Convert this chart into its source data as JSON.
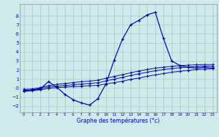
{
  "xlabel": "Graphe des températures (°c)",
  "background_color": "#ceeaea",
  "grid_color": "#a0c8c8",
  "line_color": "#0000bb",
  "xlim": [
    -0.5,
    23.5
  ],
  "ylim": [
    -2.7,
    9.3
  ],
  "yticks": [
    -2,
    -1,
    0,
    1,
    2,
    3,
    4,
    5,
    6,
    7,
    8
  ],
  "xticks": [
    0,
    1,
    2,
    3,
    4,
    5,
    6,
    7,
    8,
    9,
    10,
    11,
    12,
    13,
    14,
    15,
    16,
    17,
    18,
    19,
    20,
    21,
    22,
    23
  ],
  "series_flat1_x": [
    0,
    1,
    2,
    3,
    4,
    5,
    6,
    7,
    8,
    9,
    10,
    11,
    12,
    13,
    14,
    15,
    16,
    17,
    18,
    19,
    20,
    21,
    22,
    23
  ],
  "series_flat1_y": [
    -0.35,
    -0.3,
    -0.2,
    -0.05,
    0.05,
    0.1,
    0.15,
    0.2,
    0.25,
    0.3,
    0.45,
    0.6,
    0.75,
    0.95,
    1.1,
    1.3,
    1.45,
    1.6,
    1.75,
    1.85,
    1.95,
    2.05,
    2.1,
    2.15
  ],
  "series_flat2_x": [
    0,
    1,
    2,
    3,
    4,
    5,
    6,
    7,
    8,
    9,
    10,
    11,
    12,
    13,
    14,
    15,
    16,
    17,
    18,
    19,
    20,
    21,
    22,
    23
  ],
  "series_flat2_y": [
    -0.25,
    -0.2,
    -0.05,
    0.1,
    0.2,
    0.28,
    0.36,
    0.44,
    0.5,
    0.58,
    0.78,
    0.98,
    1.18,
    1.38,
    1.58,
    1.75,
    1.9,
    2.05,
    2.15,
    2.25,
    2.32,
    2.38,
    2.42,
    2.42
  ],
  "series_flat3_x": [
    0,
    1,
    2,
    3,
    4,
    5,
    6,
    7,
    8,
    9,
    10,
    11,
    12,
    13,
    14,
    15,
    16,
    17,
    18,
    19,
    20,
    21,
    22,
    23
  ],
  "series_flat3_y": [
    -0.15,
    -0.1,
    0.05,
    0.25,
    0.4,
    0.5,
    0.6,
    0.7,
    0.76,
    0.86,
    1.08,
    1.28,
    1.48,
    1.68,
    1.88,
    2.05,
    2.2,
    2.3,
    2.4,
    2.48,
    2.53,
    2.58,
    2.6,
    2.6
  ],
  "series_main_x": [
    0,
    1,
    2,
    3,
    4,
    5,
    6,
    7,
    8,
    9,
    10,
    11,
    12,
    13,
    14,
    15,
    16,
    17,
    18,
    19,
    20,
    21,
    22,
    23
  ],
  "series_main_y": [
    -0.35,
    -0.3,
    -0.1,
    0.7,
    0.1,
    -0.7,
    -1.3,
    -1.65,
    -1.9,
    -1.2,
    0.45,
    3.1,
    5.4,
    7.0,
    7.5,
    8.1,
    8.4,
    5.5,
    3.0,
    2.5,
    2.3,
    2.2,
    2.3,
    2.2
  ]
}
